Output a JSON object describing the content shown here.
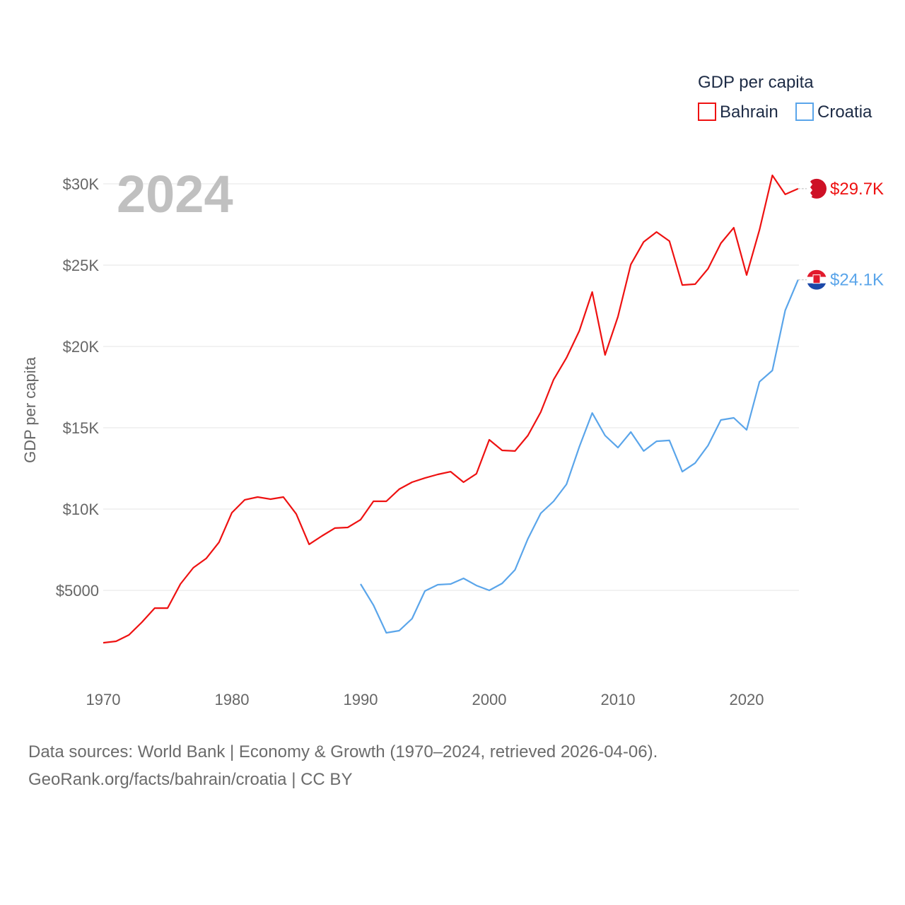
{
  "chart_data": {
    "type": "line",
    "title": "GDP per capita",
    "year_label": "2024",
    "ylabel": "GDP per capita",
    "xlabel": "",
    "xlim": [
      1970,
      2024
    ],
    "ylim": [
      0,
      30000
    ],
    "x_ticks": [
      1970,
      1980,
      1990,
      2000,
      2010,
      2020
    ],
    "x_tick_labels": [
      "1970",
      "1980",
      "1990",
      "2000",
      "2010",
      "2020"
    ],
    "y_ticks": [
      5000,
      10000,
      15000,
      20000,
      25000,
      30000
    ],
    "y_tick_labels": [
      "$5000",
      "$10K",
      "$15K",
      "$20K",
      "$25K",
      "$30K"
    ],
    "grid": true,
    "legend_position": "top-right",
    "series": [
      {
        "name": "Bahrain",
        "color": "#ee1111",
        "end_label": "$29.7K",
        "start_year": 1970,
        "values": [
          1780,
          1870,
          2260,
          3040,
          3910,
          3910,
          5390,
          6390,
          6960,
          7960,
          9780,
          10570,
          10740,
          10610,
          10740,
          9700,
          7830,
          8350,
          8830,
          8870,
          9350,
          10480,
          10480,
          11220,
          11650,
          11910,
          12130,
          12300,
          11650,
          12170,
          14260,
          13610,
          13570,
          14520,
          15960,
          17960,
          19300,
          20960,
          23350,
          19480,
          21830,
          25040,
          26430,
          27040,
          26480,
          23780,
          23830,
          24780,
          26350,
          27300,
          24390,
          27170,
          30520,
          29350,
          29700
        ]
      },
      {
        "name": "Croatia",
        "color": "#5aa5ea",
        "end_label": "$24.1K",
        "start_year": 1990,
        "values": [
          5390,
          4090,
          2390,
          2520,
          3260,
          4960,
          5350,
          5390,
          5740,
          5300,
          5000,
          5430,
          6260,
          8170,
          9740,
          10480,
          11520,
          13830,
          15910,
          14520,
          13780,
          14740,
          13570,
          14170,
          14220,
          12300,
          12830,
          13910,
          15480,
          15610,
          14870,
          17830,
          18520,
          22220,
          24100
        ]
      }
    ]
  },
  "footer": {
    "line1": "Data sources: World Bank | Economy & Growth (1970–2024, retrieved 2026-04-06).",
    "line2": "GeoRank.org/facts/bahrain/croatia | CC BY"
  }
}
